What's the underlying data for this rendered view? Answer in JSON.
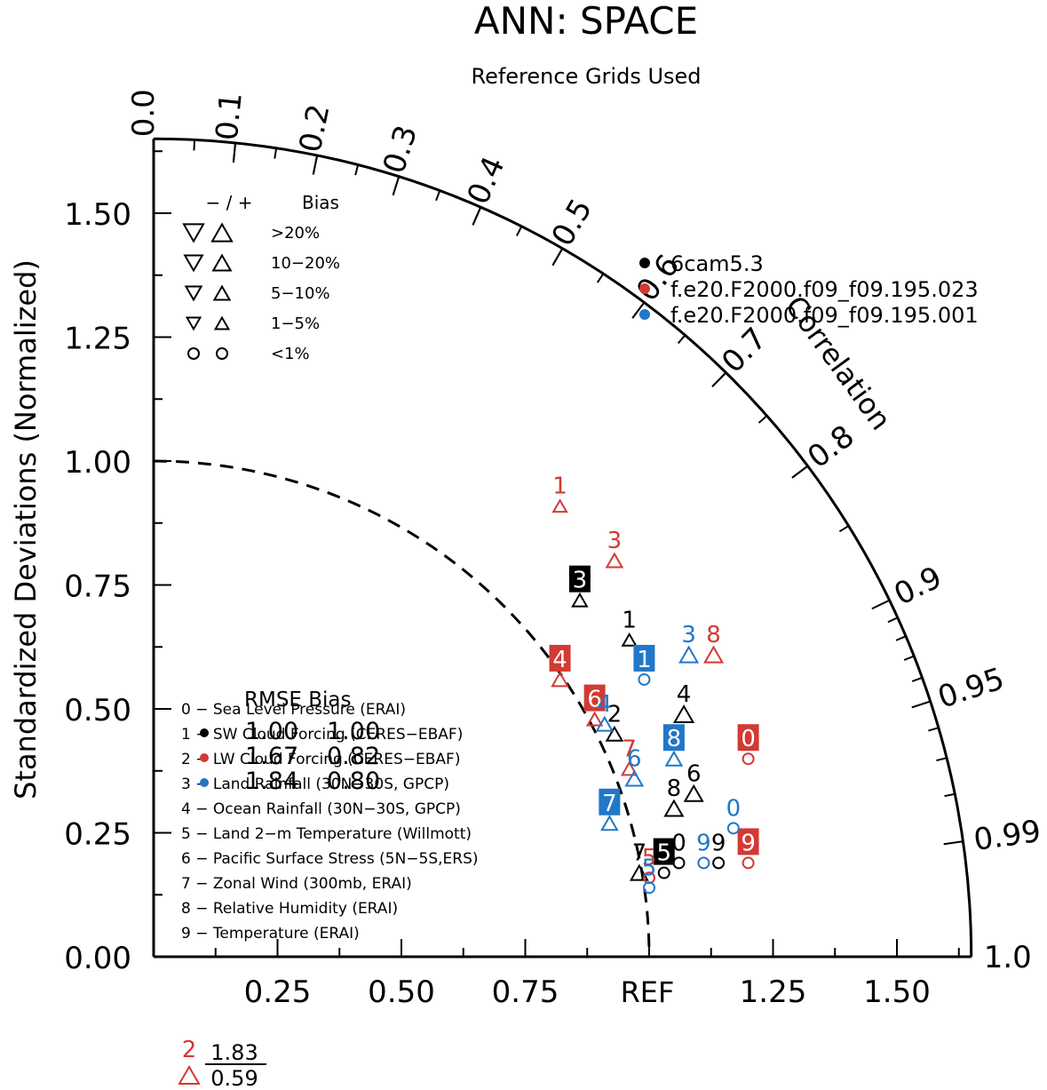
{
  "chart_data": {
    "type": "scatter",
    "subtype": "taylor-diagram",
    "title": "ANN: SPACE",
    "subtitle": "Reference Grids Used",
    "ylabel": "Standardized Deviations (Normalized)",
    "correlation_label": "Correlation",
    "ref_label": "REF",
    "y_ticks": [
      "0.00",
      "0.25",
      "0.50",
      "0.75",
      "1.00",
      "1.25",
      "1.50"
    ],
    "x_ticks": [
      "0.25",
      "0.50",
      "0.75",
      "1.25",
      "1.50"
    ],
    "corr_ticks": [
      "0.0",
      "0.1",
      "0.2",
      "0.3",
      "0.4",
      "0.5",
      "0.6",
      "0.7",
      "0.8",
      "0.9",
      "0.95",
      "0.99",
      "1.0"
    ],
    "radius_max": 1.65,
    "colors": {
      "case1": "#000000",
      "case2": "#d23a33",
      "case3": "#2177c8"
    },
    "models": [
      {
        "label": "6cam5.3",
        "color": "#000000"
      },
      {
        "label": "f.e20.F2000.f09_f09.195.023",
        "color": "#d23a33"
      },
      {
        "label": "f.e20.F2000.f09_f09.195.001",
        "color": "#2177c8"
      }
    ],
    "bias_legend": {
      "header_sign": "− / +",
      "header_label": "Bias",
      "rows": [
        {
          "label": ">20%",
          "marker": "triangle",
          "size": 1.0
        },
        {
          "label": "10−20%",
          "marker": "triangle",
          "size": 0.8
        },
        {
          "label": "5−10%",
          "marker": "triangle",
          "size": 0.6
        },
        {
          "label": "1−5%",
          "marker": "triangle",
          "size": 0.4
        },
        {
          "label": "<1%",
          "marker": "circle",
          "size": 0.5
        }
      ]
    },
    "variables": [
      "0 − Sea Level Pressure (ERAI)",
      "1 − SW Cloud Forcing (CERES−EBAF)",
      "2 − LW Cloud Forcing (CERES−EBAF)",
      "3 − Land Rainfall (30N−30S, GPCP)",
      "4 − Ocean Rainfall (30N−30S, GPCP)",
      "5 − Land 2−m Temperature (Willmott)",
      "6 − Pacific Surface Stress (5N−5S,ERS)",
      "7 − Zonal Wind (300mb, ERAI)",
      "8 − Relative Humidity (ERAI)",
      "9 − Temperature (ERAI)"
    ],
    "rmse_bias": {
      "header": "RMSE Bias",
      "rows": [
        {
          "rmse": "1.00",
          "bias": "1.00"
        },
        {
          "rmse": "1.67",
          "bias": "0.82"
        },
        {
          "rmse": "1.84",
          "bias": "0.80"
        }
      ]
    },
    "outlier": {
      "id": "2",
      "color": "#d23a33",
      "std": "1.83",
      "corr": "0.59"
    },
    "points": [
      {
        "case": 0,
        "id": "0",
        "x": 1.06,
        "y": 0.2,
        "marker": "circle",
        "size": 0.5
      },
      {
        "case": 0,
        "id": "1",
        "x": 0.96,
        "y": 0.65,
        "marker": "triangle",
        "size": 0.4
      },
      {
        "case": 0,
        "id": "2",
        "x": 0.93,
        "y": 0.46,
        "marker": "triangle",
        "size": 0.6
      },
      {
        "case": 0,
        "id": "3",
        "x": 0.86,
        "y": 0.73,
        "marker": "triangle",
        "size": 0.5,
        "boxed": true
      },
      {
        "case": 0,
        "id": "4",
        "x": 1.07,
        "y": 0.5,
        "marker": "triangle",
        "size": 0.9
      },
      {
        "case": 0,
        "id": "5",
        "x": 1.03,
        "y": 0.18,
        "marker": "circle",
        "size": 0.5,
        "boxed": true
      },
      {
        "case": 0,
        "id": "6",
        "x": 1.09,
        "y": 0.34,
        "marker": "triangle",
        "size": 0.8
      },
      {
        "case": 0,
        "id": "7",
        "x": 0.98,
        "y": 0.18,
        "marker": "triangle",
        "size": 0.7
      },
      {
        "case": 0,
        "id": "8",
        "x": 1.05,
        "y": 0.31,
        "marker": "triangle",
        "size": 0.8
      },
      {
        "case": 0,
        "id": "9",
        "x": 1.14,
        "y": 0.2,
        "marker": "circle",
        "size": 0.5
      },
      {
        "case": 1,
        "id": "0",
        "x": 1.2,
        "y": 0.41,
        "marker": "circle",
        "size": 0.5,
        "boxed": true
      },
      {
        "case": 1,
        "id": "1",
        "x": 0.82,
        "y": 0.92,
        "marker": "triangle",
        "size": 0.4
      },
      {
        "case": 1,
        "id": "3",
        "x": 0.93,
        "y": 0.81,
        "marker": "triangle",
        "size": 0.6
      },
      {
        "case": 1,
        "id": "4",
        "x": 0.82,
        "y": 0.57,
        "marker": "triangle",
        "size": 0.6,
        "boxed": true
      },
      {
        "case": 1,
        "id": "5",
        "x": 1.0,
        "y": 0.17,
        "marker": "circle",
        "size": 0.5
      },
      {
        "case": 1,
        "id": "6",
        "x": 0.89,
        "y": 0.49,
        "marker": "triangle",
        "size": 0.5,
        "boxed": true
      },
      {
        "case": 1,
        "id": "7",
        "x": 0.96,
        "y": 0.39,
        "marker": "triangle",
        "size": 0.5
      },
      {
        "case": 1,
        "id": "8",
        "x": 1.13,
        "y": 0.62,
        "marker": "triangle",
        "size": 0.8
      },
      {
        "case": 1,
        "id": "9",
        "x": 1.2,
        "y": 0.2,
        "marker": "circle",
        "size": 0.5,
        "boxed": true
      },
      {
        "case": 2,
        "id": "0",
        "x": 1.17,
        "y": 0.27,
        "marker": "circle",
        "size": 0.5
      },
      {
        "case": 2,
        "id": "1",
        "x": 0.99,
        "y": 0.57,
        "marker": "circle",
        "size": 0.5,
        "boxed": true
      },
      {
        "case": 2,
        "id": "3",
        "x": 1.08,
        "y": 0.62,
        "marker": "triangle",
        "size": 0.8
      },
      {
        "case": 2,
        "id": "4",
        "x": 0.91,
        "y": 0.48,
        "marker": "triangle",
        "size": 0.6
      },
      {
        "case": 2,
        "id": "5",
        "x": 1.0,
        "y": 0.15,
        "marker": "circle",
        "size": 0.5
      },
      {
        "case": 2,
        "id": "6",
        "x": 0.97,
        "y": 0.37,
        "marker": "triangle",
        "size": 0.7
      },
      {
        "case": 2,
        "id": "7",
        "x": 0.92,
        "y": 0.28,
        "marker": "triangle",
        "size": 0.6,
        "boxed": true
      },
      {
        "case": 2,
        "id": "8",
        "x": 1.05,
        "y": 0.41,
        "marker": "triangle",
        "size": 0.6,
        "boxed": true
      },
      {
        "case": 2,
        "id": "9",
        "x": 1.11,
        "y": 0.2,
        "marker": "circle",
        "size": 0.5
      }
    ]
  }
}
